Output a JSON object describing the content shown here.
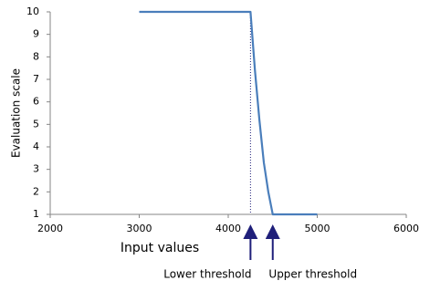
{
  "chart_data": {
    "type": "line",
    "x_label": "Input values",
    "y_label": "Evaluation scale",
    "x": [
      3000,
      4250,
      4300,
      4350,
      4400,
      4450,
      4500,
      5000
    ],
    "values": [
      10,
      10,
      7.4,
      5.2,
      3.3,
      2.0,
      1,
      1
    ],
    "color": "#4a7ebb",
    "xlim": [
      2000,
      6000
    ],
    "xticks": [
      2000,
      3000,
      4000,
      5000,
      6000
    ],
    "ylim": [
      1,
      10
    ],
    "yticks": [
      1,
      2,
      3,
      4,
      5,
      6,
      7,
      8,
      9,
      10
    ],
    "annotations": [
      {
        "label": "Lower threshold",
        "x": 4250
      },
      {
        "label": "Upper threshold",
        "x": 4500
      }
    ]
  }
}
